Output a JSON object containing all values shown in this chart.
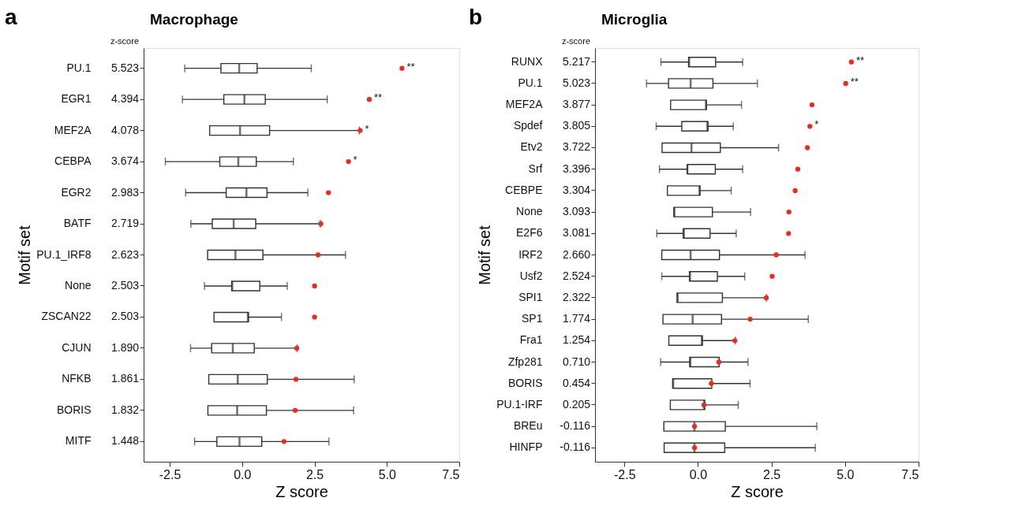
{
  "chart_data": [
    {
      "type": "box",
      "orientation": "horizontal",
      "title": "Macrophage",
      "xlabel": "Z score",
      "ylabel": "Motif set",
      "grid": false,
      "categories": [
        "PU.1",
        "EGR1",
        "MEF2A",
        "CEBPA",
        "EGR2",
        "BATF",
        "PU.1_IRF8",
        "None",
        "ZSCAN22",
        "CJUN",
        "NFKB",
        "BORIS",
        "MITF"
      ],
      "xlim": [
        -3.4,
        7.5
      ],
      "xticks": [
        {
          "value": -2.5,
          "label": "-2.5"
        },
        {
          "value": 0,
          "label": "0.0"
        },
        {
          "value": 2.5,
          "label": "2.5"
        },
        {
          "value": 5,
          "label": "5.0"
        },
        {
          "value": 7.5,
          "label": "7.5"
        }
      ],
      "boxes": [
        {
          "low": -1.98,
          "q1": -0.73,
          "median": -0.1,
          "q3": 0.52,
          "high": 2.39
        },
        {
          "low": -2.06,
          "q1": -0.63,
          "median": 0.08,
          "q3": 0.8,
          "high": 2.94
        },
        {
          "low": -1.12,
          "q1": -1.12,
          "median": -0.07,
          "q3": 0.95,
          "high": 4.05
        },
        {
          "low": -2.65,
          "q1": -0.77,
          "median": -0.13,
          "q3": 0.49,
          "high": 1.77
        },
        {
          "low": -1.95,
          "q1": -0.55,
          "median": 0.15,
          "q3": 0.86,
          "high": 2.27
        },
        {
          "low": -1.77,
          "q1": -1.03,
          "median": -0.29,
          "q3": 0.47,
          "high": 2.7
        },
        {
          "low": -1.19,
          "q1": -1.19,
          "median": -0.23,
          "q3": 0.72,
          "high": 3.57
        },
        {
          "low": -1.3,
          "q1": -0.36,
          "median": -0.34,
          "q3": 0.61,
          "high": 1.56
        },
        {
          "low": -0.97,
          "q1": -0.97,
          "median": 0.2,
          "q3": 0.22,
          "high": 1.36
        },
        {
          "low": -1.78,
          "q1": -1.05,
          "median": -0.32,
          "q3": 0.42,
          "high": 1.9
        },
        {
          "low": -1.15,
          "q1": -1.15,
          "median": -0.15,
          "q3": 0.87,
          "high": 3.87
        },
        {
          "low": -1.18,
          "q1": -1.18,
          "median": -0.17,
          "q3": 0.84,
          "high": 3.85
        },
        {
          "low": -1.64,
          "q1": -0.87,
          "median": -0.09,
          "q3": 0.68,
          "high": 3.0
        }
      ],
      "series": [
        {
          "type": "scatter",
          "color": "#ee2a1c",
          "marker": "circle",
          "values": [
            5.523,
            4.394,
            4.078,
            3.674,
            2.983,
            2.719,
            2.623,
            2.503,
            2.503,
            1.89,
            1.861,
            1.832,
            1.448
          ],
          "value_labels": [
            "5.523",
            "4.394",
            "4.078",
            "3.674",
            "2.983",
            "2.719",
            "2.623",
            "2.503",
            "2.503",
            "1.890",
            "1.861",
            "1.832",
            "1.448"
          ]
        }
      ],
      "annotations": [
        "a",
        "z-score",
        {
          "text": "**",
          "x": 5.523,
          "y": "PU.1"
        },
        {
          "text": "**",
          "x": 4.394,
          "y": "EGR1"
        },
        {
          "text": "*",
          "x": 4.078,
          "y": "MEF2A"
        },
        {
          "text": "*",
          "x": 3.674,
          "y": "CEBPA"
        }
      ]
    },
    {
      "type": "box",
      "orientation": "horizontal",
      "title": "Microglia",
      "xlabel": "Z score",
      "ylabel": "Motif set",
      "grid": false,
      "categories": [
        "RUNX",
        "PU.1",
        "MEF2A",
        "Spdef",
        "Etv2",
        "Srf",
        "CEBPE",
        "None",
        "E2F6",
        "IRF2",
        "Usf2",
        "SPI1",
        "SP1",
        "Fra1",
        "Zfp281",
        "BORIS",
        "PU.1-IRF",
        "BREu",
        "HINFP"
      ],
      "xlim": [
        -3.5,
        7.5
      ],
      "xticks": [
        {
          "value": -2.5,
          "label": "-2.5"
        },
        {
          "value": 0,
          "label": "0.0"
        },
        {
          "value": 2.5,
          "label": "2.5"
        },
        {
          "value": 5,
          "label": "5.0"
        },
        {
          "value": 7.5,
          "label": "7.5"
        }
      ],
      "boxes": [
        {
          "low": -1.26,
          "q1": -0.32,
          "median": -0.3,
          "q3": 0.6,
          "high": 1.52
        },
        {
          "low": -1.75,
          "q1": -1.0,
          "median": -0.25,
          "q3": 0.51,
          "high": 2.02
        },
        {
          "low": -0.93,
          "q1": -0.93,
          "median": 0.27,
          "q3": 0.29,
          "high": 1.48
        },
        {
          "low": -1.42,
          "q1": -0.55,
          "median": 0.32,
          "q3": 0.34,
          "high": 1.2
        },
        {
          "low": -1.22,
          "q1": -1.22,
          "median": -0.22,
          "q3": 0.76,
          "high": 2.74
        },
        {
          "low": -1.31,
          "q1": -0.36,
          "median": -0.36,
          "q3": 0.59,
          "high": 1.52
        },
        {
          "low": -1.04,
          "q1": -1.04,
          "median": 0.05,
          "q3": 0.07,
          "high": 1.13
        },
        {
          "low": -0.82,
          "q1": -0.82,
          "median": -0.8,
          "q3": 0.49,
          "high": 1.79
        },
        {
          "low": -1.4,
          "q1": -0.5,
          "median": -0.48,
          "q3": 0.41,
          "high": 1.3
        },
        {
          "low": -1.23,
          "q1": -1.23,
          "median": -0.25,
          "q3": 0.73,
          "high": 3.64
        },
        {
          "low": -1.23,
          "q1": -0.29,
          "median": -0.27,
          "q3": 0.66,
          "high": 1.59
        },
        {
          "low": -0.71,
          "q1": -0.71,
          "median": -0.69,
          "q3": 0.83,
          "high": 2.33
        },
        {
          "low": -1.19,
          "q1": -1.19,
          "median": -0.18,
          "q3": 0.8,
          "high": 3.75
        },
        {
          "low": -0.99,
          "q1": -0.99,
          "median": 0.13,
          "q3": 0.15,
          "high": 1.27
        },
        {
          "low": -1.27,
          "q1": -0.28,
          "median": -0.26,
          "q3": 0.72,
          "high": 1.7
        },
        {
          "low": -0.86,
          "q1": -0.86,
          "median": -0.84,
          "q3": 0.47,
          "high": 1.77
        },
        {
          "low": -0.94,
          "q1": -0.94,
          "median": 0.21,
          "q3": 0.23,
          "high": 1.37
        },
        {
          "low": -1.16,
          "q1": -1.16,
          "median": -0.12,
          "q3": 0.93,
          "high": 4.04
        },
        {
          "low": -1.15,
          "q1": -1.15,
          "median": -0.12,
          "q3": 0.91,
          "high": 3.99
        }
      ],
      "series": [
        {
          "type": "scatter",
          "color": "#ee2a1c",
          "marker": "circle",
          "values": [
            5.217,
            5.023,
            3.877,
            3.805,
            3.722,
            3.396,
            3.304,
            3.093,
            3.081,
            2.66,
            2.524,
            2.322,
            1.774,
            1.254,
            0.71,
            0.454,
            0.205,
            -0.116,
            -0.116
          ],
          "value_labels": [
            "5.217",
            "5.023",
            "3.877",
            "3.805",
            "3.722",
            "3.396",
            "3.304",
            "3.093",
            "3.081",
            "2.660",
            "2.524",
            "2.322",
            "1.774",
            "1.254",
            "0.710",
            "0.454",
            "0.205",
            "-0.116",
            "-0.116"
          ]
        }
      ],
      "annotations": [
        "b",
        "z-score",
        {
          "text": "**",
          "x": 5.217,
          "y": "RUNX"
        },
        {
          "text": "**",
          "x": 5.023,
          "y": "PU.1"
        },
        {
          "text": "*",
          "x": 3.805,
          "y": "Spdef"
        }
      ]
    }
  ]
}
